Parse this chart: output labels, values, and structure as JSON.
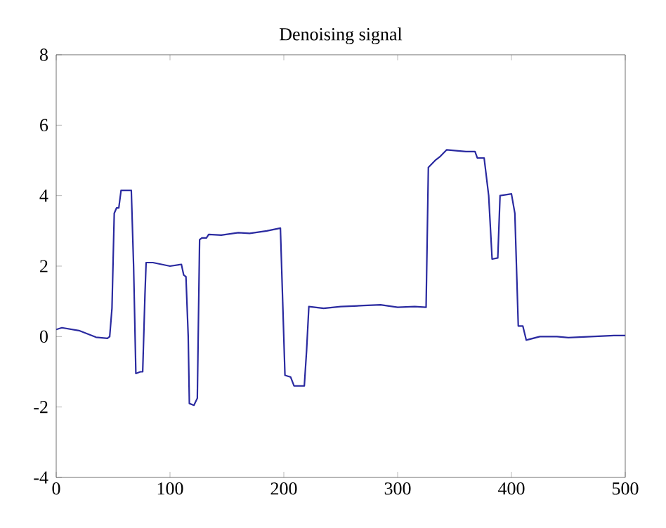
{
  "chart_data": {
    "type": "line",
    "title": "Denoising signal",
    "xlim": [
      0,
      500
    ],
    "ylim": [
      -4,
      8
    ],
    "xticks": [
      0,
      100,
      200,
      300,
      400,
      500
    ],
    "yticks": [
      -4,
      -2,
      0,
      2,
      4,
      6,
      8
    ],
    "grid": false,
    "series": [
      {
        "color": "#2a2aa0",
        "x": [
          0,
          5,
          20,
          35,
          45,
          47,
          49,
          51,
          53,
          55,
          57,
          66,
          68,
          70,
          74,
          76,
          78,
          79,
          85,
          100,
          110,
          112,
          114,
          116,
          117,
          121,
          124,
          126,
          128,
          132,
          134,
          145,
          160,
          170,
          185,
          197,
          199,
          201,
          206,
          209,
          218,
          220,
          222,
          235,
          250,
          270,
          285,
          300,
          315,
          325,
          327,
          330,
          333,
          337,
          343,
          360,
          368,
          370,
          376,
          380,
          383,
          388,
          390,
          400,
          403,
          406,
          410,
          413,
          425,
          440,
          450,
          470,
          490,
          500
        ],
        "values": [
          0.2,
          0.25,
          0.17,
          -0.02,
          -0.05,
          0.0,
          0.8,
          3.5,
          3.65,
          3.65,
          4.15,
          4.15,
          2.0,
          -1.05,
          -1.0,
          -1.0,
          1.2,
          2.1,
          2.1,
          2.0,
          2.05,
          1.75,
          1.7,
          0.0,
          -1.9,
          -1.95,
          -1.75,
          2.75,
          2.8,
          2.8,
          2.9,
          2.88,
          2.95,
          2.93,
          3.0,
          3.08,
          1.0,
          -1.1,
          -1.15,
          -1.4,
          -1.4,
          -0.4,
          0.85,
          0.8,
          0.85,
          0.88,
          0.9,
          0.83,
          0.85,
          0.83,
          4.8,
          4.9,
          5.0,
          5.1,
          5.3,
          5.25,
          5.25,
          5.07,
          5.07,
          4.0,
          2.2,
          2.23,
          4.0,
          4.05,
          3.5,
          0.3,
          0.3,
          -0.1,
          0.0,
          0.0,
          -0.03,
          0.0,
          0.03,
          0.03
        ]
      }
    ]
  }
}
